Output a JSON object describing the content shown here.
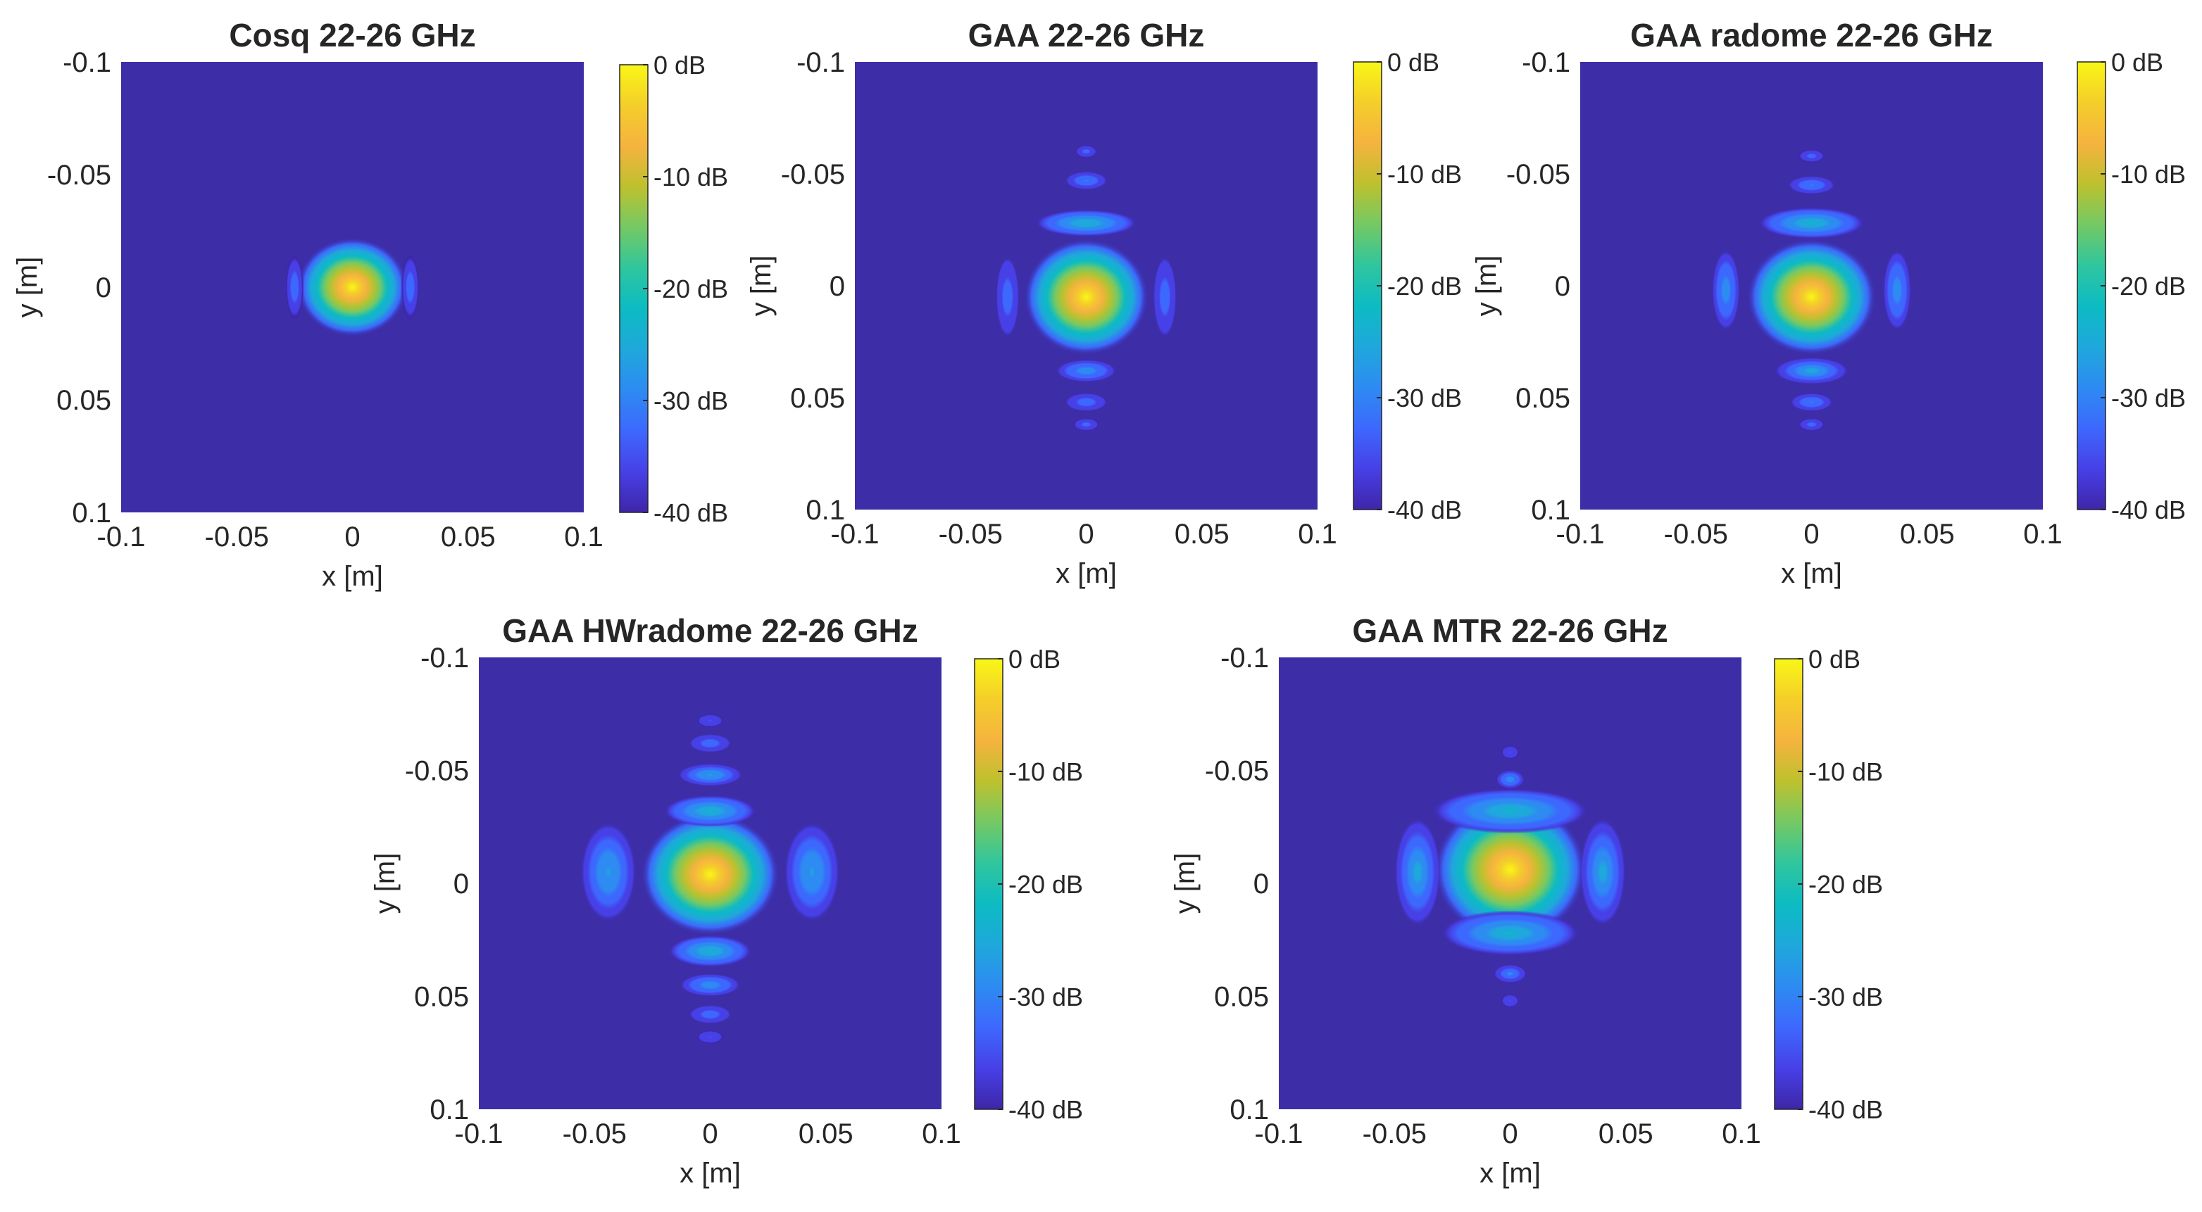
{
  "colors": {
    "background": "#3d2ea8",
    "colormap": [
      "#3e26a8",
      "#4740e7",
      "#3d68fd",
      "#2d8bf2",
      "#1fa8db",
      "#0cbbc3",
      "#2fc69e",
      "#74c964",
      "#bdc12e",
      "#f5b33f",
      "#f4ce2a",
      "#f9f716"
    ]
  },
  "chart_data": [
    {
      "type": "heatmap",
      "title": "Cosq 22-26 GHz",
      "xlabel": "x [m]",
      "ylabel": "y [m]",
      "xlim": [
        -0.1,
        0.1
      ],
      "ylim": [
        -0.1,
        0.1
      ],
      "xticks": [
        "-0.1",
        "-0.05",
        "0",
        "0.05",
        "0.1"
      ],
      "yticks": [
        "-0.1",
        "-0.05",
        "0",
        "0.05",
        "0.1"
      ],
      "colorbar": {
        "range_db": [
          -40,
          0
        ],
        "ticks": [
          "0 dB",
          "-10 dB",
          "-20 dB",
          "-30 dB",
          "-40 dB"
        ]
      },
      "features": [
        {
          "kind": "main",
          "x": 0,
          "y": 0,
          "rx": 0.024,
          "ry": 0.022,
          "peak_db": 0
        },
        {
          "kind": "arc",
          "x": 0.025,
          "y": 0,
          "rx": 0.004,
          "ry": 0.015,
          "peak_db": -32
        },
        {
          "kind": "arc",
          "x": -0.025,
          "y": 0,
          "rx": 0.004,
          "ry": 0.015,
          "peak_db": -32
        }
      ]
    },
    {
      "type": "heatmap",
      "title": "GAA 22-26 GHz",
      "xlabel": "x [m]",
      "ylabel": "y [m]",
      "xlim": [
        -0.1,
        0.1
      ],
      "ylim": [
        -0.1,
        0.1
      ],
      "xticks": [
        "-0.1",
        "-0.05",
        "0",
        "0.05",
        "0.1"
      ],
      "yticks": [
        "-0.1",
        "-0.05",
        "0",
        "0.05",
        "0.1"
      ],
      "colorbar": {
        "range_db": [
          -40,
          0
        ],
        "ticks": [
          "0 dB",
          "-10 dB",
          "-20 dB",
          "-30 dB",
          "-40 dB"
        ]
      },
      "features": [
        {
          "kind": "main",
          "x": 0,
          "y": 0.005,
          "rx": 0.027,
          "ry": 0.026,
          "peak_db": 0
        },
        {
          "kind": "lobe",
          "x": 0,
          "y": -0.028,
          "rx": 0.022,
          "ry": 0.006,
          "peak_db": -24
        },
        {
          "kind": "lobe",
          "x": 0,
          "y": 0.038,
          "rx": 0.013,
          "ry": 0.005,
          "peak_db": -28
        },
        {
          "kind": "lobe",
          "x": 0,
          "y": -0.047,
          "rx": 0.009,
          "ry": 0.004,
          "peak_db": -30
        },
        {
          "kind": "lobe",
          "x": 0,
          "y": 0.052,
          "rx": 0.009,
          "ry": 0.004,
          "peak_db": -31
        },
        {
          "kind": "lobe",
          "x": 0,
          "y": -0.06,
          "rx": 0.005,
          "ry": 0.003,
          "peak_db": -33
        },
        {
          "kind": "lobe",
          "x": 0,
          "y": 0.062,
          "rx": 0.006,
          "ry": 0.003,
          "peak_db": -33
        },
        {
          "kind": "arc",
          "x": 0.034,
          "y": 0.005,
          "rx": 0.005,
          "ry": 0.018,
          "peak_db": -31
        },
        {
          "kind": "arc",
          "x": -0.034,
          "y": 0.005,
          "rx": 0.005,
          "ry": 0.018,
          "peak_db": -31
        }
      ]
    },
    {
      "type": "heatmap",
      "title": "GAA radome 22-26 GHz",
      "xlabel": "x [m]",
      "ylabel": "y [m]",
      "xlim": [
        -0.1,
        0.1
      ],
      "ylim": [
        -0.1,
        0.1
      ],
      "xticks": [
        "-0.1",
        "-0.05",
        "0",
        "0.05",
        "0.1"
      ],
      "yticks": [
        "-0.1",
        "-0.05",
        "0",
        "0.05",
        "0.1"
      ],
      "colorbar": {
        "range_db": [
          -40,
          0
        ],
        "ticks": [
          "0 dB",
          "-10 dB",
          "-20 dB",
          "-30 dB",
          "-40 dB"
        ]
      },
      "features": [
        {
          "kind": "main",
          "x": 0,
          "y": 0.005,
          "rx": 0.028,
          "ry": 0.026,
          "peak_db": 0
        },
        {
          "kind": "lobe",
          "x": 0,
          "y": -0.028,
          "rx": 0.023,
          "ry": 0.007,
          "peak_db": -22
        },
        {
          "kind": "lobe",
          "x": 0,
          "y": 0.038,
          "rx": 0.016,
          "ry": 0.006,
          "peak_db": -25
        },
        {
          "kind": "lobe",
          "x": 0,
          "y": -0.045,
          "rx": 0.01,
          "ry": 0.004,
          "peak_db": -30
        },
        {
          "kind": "lobe",
          "x": 0,
          "y": 0.052,
          "rx": 0.009,
          "ry": 0.004,
          "peak_db": -30
        },
        {
          "kind": "lobe",
          "x": 0,
          "y": -0.058,
          "rx": 0.006,
          "ry": 0.003,
          "peak_db": -33
        },
        {
          "kind": "lobe",
          "x": 0,
          "y": 0.062,
          "rx": 0.006,
          "ry": 0.003,
          "peak_db": -33
        },
        {
          "kind": "arc",
          "x": 0.037,
          "y": 0.002,
          "rx": 0.006,
          "ry": 0.018,
          "peak_db": -28
        },
        {
          "kind": "arc",
          "x": -0.037,
          "y": 0.002,
          "rx": 0.006,
          "ry": 0.018,
          "peak_db": -28
        }
      ]
    },
    {
      "type": "heatmap",
      "title": "GAA HWradome 22-26 GHz",
      "xlabel": "x [m]",
      "ylabel": "y [m]",
      "xlim": [
        -0.1,
        0.1
      ],
      "ylim": [
        -0.1,
        0.1
      ],
      "xticks": [
        "-0.1",
        "-0.05",
        "0",
        "0.05",
        "0.1"
      ],
      "yticks": [
        "-0.1",
        "-0.05",
        "0",
        "0.05",
        "0.1"
      ],
      "colorbar": {
        "range_db": [
          -40,
          0
        ],
        "ticks": [
          "0 dB",
          "-10 dB",
          "-20 dB",
          "-30 dB",
          "-40 dB"
        ]
      },
      "features": [
        {
          "kind": "main",
          "x": 0,
          "y": -0.004,
          "rx": 0.03,
          "ry": 0.027,
          "peak_db": 0
        },
        {
          "kind": "lobe",
          "x": 0,
          "y": -0.032,
          "rx": 0.02,
          "ry": 0.007,
          "peak_db": -23
        },
        {
          "kind": "lobe",
          "x": 0,
          "y": 0.03,
          "rx": 0.018,
          "ry": 0.007,
          "peak_db": -24
        },
        {
          "kind": "lobe",
          "x": 0,
          "y": -0.048,
          "rx": 0.014,
          "ry": 0.005,
          "peak_db": -27
        },
        {
          "kind": "lobe",
          "x": 0,
          "y": 0.045,
          "rx": 0.013,
          "ry": 0.005,
          "peak_db": -28
        },
        {
          "kind": "lobe",
          "x": 0,
          "y": -0.062,
          "rx": 0.009,
          "ry": 0.004,
          "peak_db": -31
        },
        {
          "kind": "lobe",
          "x": 0,
          "y": 0.058,
          "rx": 0.009,
          "ry": 0.004,
          "peak_db": -31
        },
        {
          "kind": "lobe",
          "x": 0,
          "y": -0.072,
          "rx": 0.006,
          "ry": 0.003,
          "peak_db": -34
        },
        {
          "kind": "lobe",
          "x": 0,
          "y": 0.068,
          "rx": 0.006,
          "ry": 0.003,
          "peak_db": -34
        },
        {
          "kind": "arc",
          "x": 0.044,
          "y": -0.005,
          "rx": 0.012,
          "ry": 0.022,
          "peak_db": -27
        },
        {
          "kind": "arc",
          "x": -0.044,
          "y": -0.005,
          "rx": 0.012,
          "ry": 0.022,
          "peak_db": -27
        }
      ]
    },
    {
      "type": "heatmap",
      "title": "GAA MTR 22-26 GHz",
      "xlabel": "x [m]",
      "ylabel": "y [m]",
      "xlim": [
        -0.1,
        0.1
      ],
      "ylim": [
        -0.1,
        0.1
      ],
      "xticks": [
        "-0.1",
        "-0.05",
        "0",
        "0.05",
        "0.1"
      ],
      "yticks": [
        "-0.1",
        "-0.05",
        "0",
        "0.05",
        "0.1"
      ],
      "colorbar": {
        "range_db": [
          -40,
          0
        ],
        "ticks": [
          "0 dB",
          "-10 dB",
          "-20 dB",
          "-30 dB",
          "-40 dB"
        ]
      },
      "features": [
        {
          "kind": "main",
          "x": 0,
          "y": -0.006,
          "rx": 0.033,
          "ry": 0.031,
          "peak_db": 0
        },
        {
          "kind": "arc",
          "x": 0,
          "y": -0.032,
          "rx": 0.034,
          "ry": 0.01,
          "peak_db": -22
        },
        {
          "kind": "arc",
          "x": 0,
          "y": 0.022,
          "rx": 0.03,
          "ry": 0.01,
          "peak_db": -23
        },
        {
          "kind": "arc",
          "x": 0.04,
          "y": -0.005,
          "rx": 0.01,
          "ry": 0.024,
          "peak_db": -25
        },
        {
          "kind": "arc",
          "x": -0.04,
          "y": -0.005,
          "rx": 0.01,
          "ry": 0.024,
          "peak_db": -25
        },
        {
          "kind": "lobe",
          "x": 0,
          "y": -0.046,
          "rx": 0.006,
          "ry": 0.004,
          "peak_db": -28
        },
        {
          "kind": "lobe",
          "x": 0,
          "y": 0.04,
          "rx": 0.007,
          "ry": 0.004,
          "peak_db": -29
        },
        {
          "kind": "lobe",
          "x": 0,
          "y": -0.058,
          "rx": 0.004,
          "ry": 0.003,
          "peak_db": -34
        },
        {
          "kind": "lobe",
          "x": 0,
          "y": 0.052,
          "rx": 0.004,
          "ry": 0.003,
          "peak_db": -34
        }
      ]
    }
  ]
}
